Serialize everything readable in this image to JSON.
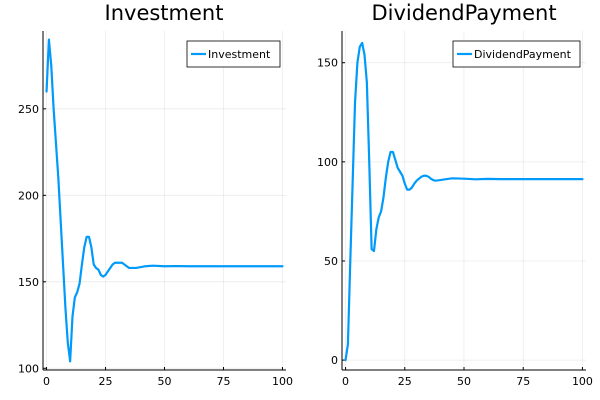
{
  "chart_data": [
    {
      "type": "line",
      "title": "Investment",
      "xlabel": "",
      "ylabel": "",
      "xlim": [
        -1.5,
        101.5
      ],
      "ylim": [
        99,
        295
      ],
      "xticks": [
        0,
        25,
        50,
        75,
        100
      ],
      "xtick_labels": [
        "0",
        "25",
        "50",
        "75",
        "100"
      ],
      "yticks": [
        100,
        150,
        200,
        250
      ],
      "ytick_labels": [
        "100",
        "150",
        "200",
        "250"
      ],
      "grid": true,
      "legend": "top-right",
      "series": [
        {
          "name": "Investment",
          "color": "#009AFA",
          "x": [
            0,
            1,
            2,
            3,
            4,
            5,
            6,
            7,
            8,
            9,
            10,
            11,
            12,
            13,
            14,
            15,
            16,
            17,
            18,
            19,
            20,
            21,
            22,
            23,
            24,
            25,
            26,
            27,
            28,
            29,
            30,
            31,
            32,
            33,
            34,
            35,
            36,
            37,
            38,
            40,
            42,
            45,
            50,
            55,
            60,
            65,
            70,
            75,
            80,
            85,
            90,
            95,
            100
          ],
          "y": [
            260,
            290,
            275,
            250,
            230,
            210,
            185,
            160,
            135,
            115,
            104,
            130,
            141,
            144,
            149,
            160,
            170,
            176,
            176,
            170,
            160,
            158,
            157,
            154,
            153,
            154,
            156,
            158,
            160,
            161,
            161,
            161,
            161,
            160,
            159,
            158,
            158,
            158,
            158,
            158.5,
            159,
            159.3,
            159,
            159.1,
            159,
            159,
            159,
            159,
            159,
            159,
            159,
            159,
            159
          ]
        }
      ]
    },
    {
      "type": "line",
      "title": "DividendPayment",
      "xlabel": "",
      "ylabel": "",
      "xlim": [
        -1.5,
        101.5
      ],
      "ylim": [
        -5,
        166
      ],
      "xticks": [
        0,
        25,
        50,
        75,
        100
      ],
      "xtick_labels": [
        "0",
        "25",
        "50",
        "75",
        "100"
      ],
      "yticks": [
        0,
        50,
        100,
        150
      ],
      "ytick_labels": [
        "0",
        "50",
        "100",
        "150"
      ],
      "grid": true,
      "legend": "top-right",
      "series": [
        {
          "name": "DividendPayment",
          "color": "#009AFA",
          "x": [
            0,
            1,
            2,
            3,
            4,
            5,
            6,
            7,
            8,
            9,
            10,
            11,
            12,
            13,
            14,
            15,
            16,
            17,
            18,
            19,
            20,
            21,
            22,
            23,
            24,
            25,
            26,
            27,
            28,
            29,
            30,
            31,
            32,
            33,
            34,
            35,
            36,
            37,
            38,
            40,
            42,
            45,
            50,
            55,
            60,
            65,
            70,
            75,
            80,
            85,
            90,
            95,
            100
          ],
          "y": [
            0,
            8,
            50,
            90,
            130,
            150,
            158,
            160,
            154,
            140,
            100,
            56,
            55,
            66,
            72,
            75,
            82,
            92,
            100,
            105,
            105,
            101,
            97,
            95,
            93,
            89,
            86,
            86,
            87,
            89,
            90.5,
            91.5,
            92.5,
            93,
            93,
            92.5,
            91.5,
            90.8,
            90.5,
            90.8,
            91.2,
            91.7,
            91.5,
            91.2,
            91.4,
            91.3,
            91.3,
            91.3,
            91.3,
            91.3,
            91.3,
            91.3,
            91.3
          ]
        }
      ]
    }
  ]
}
